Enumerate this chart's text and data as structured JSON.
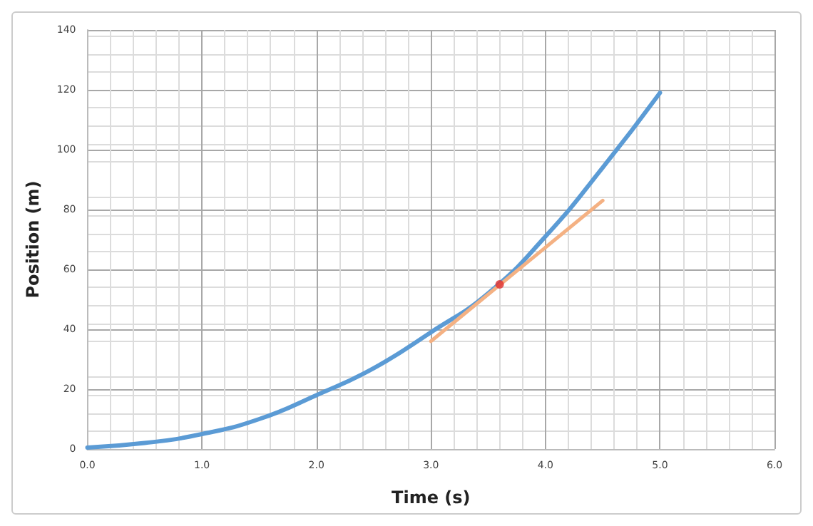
{
  "chart_data": {
    "type": "line",
    "xlabel": "Time (s)",
    "ylabel": "Position (m)",
    "xlim": [
      0,
      6
    ],
    "ylim": [
      0,
      140
    ],
    "xticks": [
      {
        "value": 0,
        "label": "0.0"
      },
      {
        "value": 1,
        "label": "1.0"
      },
      {
        "value": 2,
        "label": "2.0"
      },
      {
        "value": 3,
        "label": "3.0"
      },
      {
        "value": 4,
        "label": "4.0"
      },
      {
        "value": 5,
        "label": "5.0"
      },
      {
        "value": 6,
        "label": "6.0"
      }
    ],
    "yticks": [
      0,
      20,
      40,
      60,
      80,
      100,
      120,
      140
    ],
    "grid": true,
    "marker": "none",
    "line_style": "solid",
    "series": [
      {
        "color": "#5b9bd5",
        "x": [
          0,
          0.5,
          1,
          1.5,
          2,
          2.5,
          3,
          3.5,
          4,
          4.5,
          5
        ],
        "values": [
          0.5,
          2,
          5,
          10,
          18,
          27,
          39,
          52,
          71,
          94,
          119
        ]
      },
      {
        "type": "line",
        "color": "#f4b183",
        "x": [
          3,
          4.5
        ],
        "values": [
          36,
          83
        ]
      },
      {
        "type": "scatter",
        "color": "#e03030",
        "marker": "circle",
        "x": [
          3.6
        ],
        "values": [
          55
        ]
      }
    ]
  }
}
